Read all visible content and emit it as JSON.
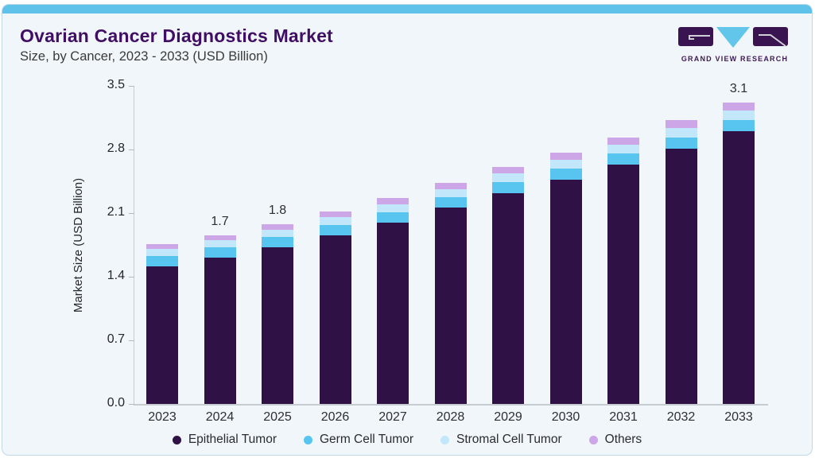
{
  "header": {
    "title": "Ovarian Cancer Diagnostics Market",
    "subtitle": "Size, by Cancer, 2023 - 2033 (USD Billion)"
  },
  "logo": {
    "text": "GRAND VIEW RESEARCH"
  },
  "theme": {
    "accent_bar": "#5fc2e9",
    "card_background": "#f0f6fa",
    "card_border": "#bdd8ea",
    "title_color": "#400f63",
    "axis_line": "#c6ccd2"
  },
  "chart_data": {
    "type": "bar",
    "stacked": true,
    "title": "Ovarian Cancer Diagnostics Market",
    "subtitle": "Size, by Cancer, 2023 - 2033 (USD Billion)",
    "xlabel": "",
    "ylabel": "Market Size (USD Billion)",
    "ylim": [
      0,
      3.5
    ],
    "yticks": [
      "3.5",
      "2.8",
      "2.1",
      "1.4",
      "0.7",
      "0.0"
    ],
    "grid": false,
    "legend_position": "bottom",
    "categories": [
      "2023",
      "2024",
      "2025",
      "2026",
      "2027",
      "2028",
      "2029",
      "2030",
      "2031",
      "2032",
      "2033"
    ],
    "series": [
      {
        "name": "Epithelial Tumor",
        "color": "#2f1145",
        "values": [
          1.413,
          1.506,
          1.61,
          1.732,
          1.866,
          2.019,
          2.162,
          2.306,
          2.458,
          2.622,
          2.805
        ]
      },
      {
        "name": "Germ Cell Tumor",
        "color": "#58c5f1",
        "values": [
          0.105,
          0.106,
          0.107,
          0.108,
          0.109,
          0.11,
          0.111,
          0.112,
          0.113,
          0.114,
          0.115
        ]
      },
      {
        "name": "Stromal Cell Tumor",
        "color": "#c3e7fa",
        "values": [
          0.072,
          0.075,
          0.077,
          0.08,
          0.082,
          0.085,
          0.088,
          0.09,
          0.093,
          0.095,
          0.098
        ]
      },
      {
        "name": "Others",
        "color": "#cda6e7",
        "values": [
          0.05,
          0.053,
          0.056,
          0.06,
          0.063,
          0.066,
          0.069,
          0.072,
          0.076,
          0.079,
          0.082
        ]
      }
    ],
    "totals": [
      1.64,
      1.74,
      1.85,
      1.98,
      2.12,
      2.28,
      2.43,
      2.58,
      2.74,
      2.91,
      3.1
    ],
    "bar_labels": {
      "2024": "1.7",
      "2025": "1.8",
      "2033": "3.1"
    }
  }
}
